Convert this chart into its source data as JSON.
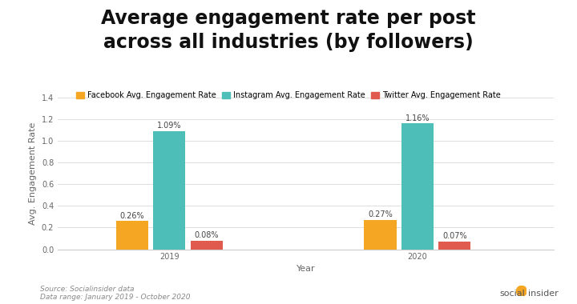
{
  "title": "Average engagement rate per post\nacross all industries (by followers)",
  "xlabel": "Year",
  "ylabel": "Avg. Engagement Rate",
  "years": [
    "2019",
    "2020"
  ],
  "facebook": [
    0.26,
    0.27
  ],
  "instagram": [
    1.09,
    1.16
  ],
  "twitter": [
    0.08,
    0.07
  ],
  "facebook_labels": [
    "0.26%",
    "0.27%"
  ],
  "instagram_labels": [
    "1.09%",
    "1.16%"
  ],
  "twitter_labels": [
    "0.08%",
    "0.07%"
  ],
  "facebook_color": "#F5A623",
  "instagram_color": "#4DBFB8",
  "twitter_color": "#E05A4E",
  "ylim": [
    0,
    1.4
  ],
  "yticks": [
    0,
    0.2,
    0.4,
    0.6,
    0.8,
    1.0,
    1.2,
    1.4
  ],
  "background_color": "#ffffff",
  "legend_labels": [
    "Facebook Avg. Engagement Rate",
    "Instagram Avg. Engagement Rate",
    "Twitter Avg. Engagement Rate"
  ],
  "source_text": "Source: Socialinsider data\nData range: January 2019 - October 2020",
  "bar_width": 0.13,
  "title_fontsize": 17,
  "legend_fontsize": 7,
  "label_fontsize": 8,
  "tick_fontsize": 7,
  "value_label_fontsize": 7
}
